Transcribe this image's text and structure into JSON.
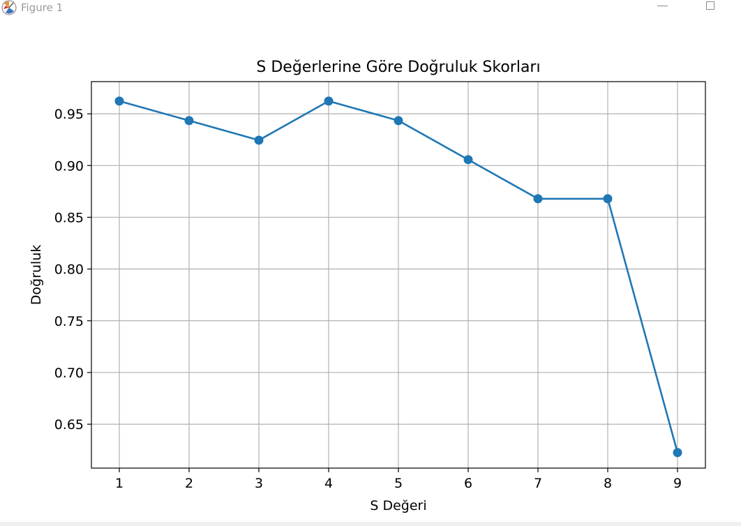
{
  "window": {
    "title": "Figure 1",
    "app_icon": "matplotlib-figure-icon",
    "minimize_icon": "minimize-icon",
    "maximize_icon": "maximize-icon"
  },
  "chart_data": {
    "type": "line",
    "title": "S Değerlerine Göre Doğruluk Skorları",
    "xlabel": "S Değeri",
    "ylabel": "Doğruluk",
    "x": [
      1,
      2,
      3,
      4,
      5,
      6,
      7,
      8,
      9
    ],
    "xticks": [
      "1",
      "2",
      "3",
      "4",
      "5",
      "6",
      "7",
      "8",
      "9"
    ],
    "yticks": [
      "0.65",
      "0.70",
      "0.75",
      "0.80",
      "0.85",
      "0.90",
      "0.95"
    ],
    "ytick_values": [
      0.65,
      0.7,
      0.75,
      0.8,
      0.85,
      0.9,
      0.95
    ],
    "xlim": [
      0.6,
      9.4
    ],
    "ylim": [
      0.6076,
      0.9811
    ],
    "grid": true,
    "marker": "circle",
    "series": [
      {
        "values": [
          0.9623,
          0.9434,
          0.9245,
          0.9623,
          0.9434,
          0.9057,
          0.8679,
          0.8679,
          0.6226
        ],
        "color": "#1f77b4"
      }
    ]
  }
}
